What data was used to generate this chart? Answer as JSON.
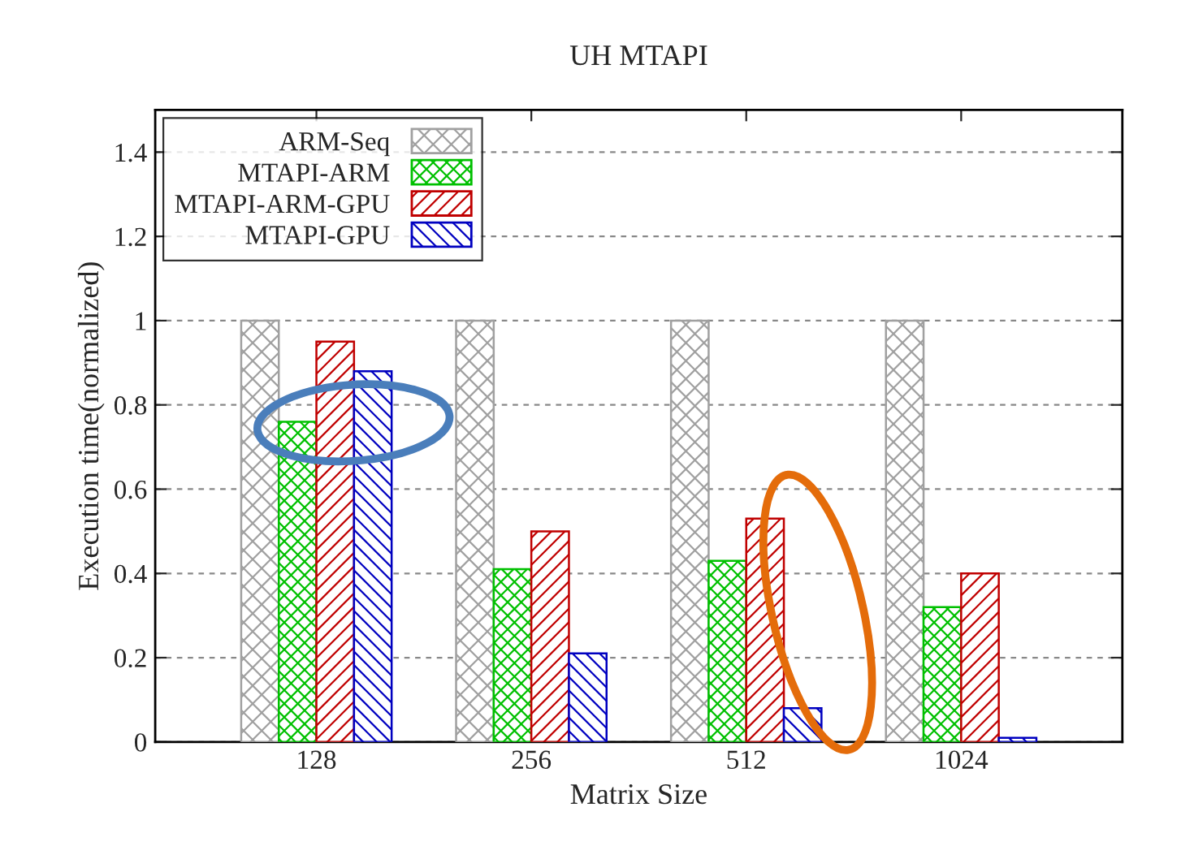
{
  "chart_data": {
    "type": "bar",
    "title": "UH MTAPI",
    "xlabel": "Matrix Size",
    "ylabel": "Execution time(normalized)",
    "categories": [
      "128",
      "256",
      "512",
      "1024"
    ],
    "series": [
      {
        "name": "ARM-Seq",
        "color": "#a0a0a0",
        "values": [
          1,
          1,
          1,
          1
        ]
      },
      {
        "name": "MTAPI-ARM",
        "color": "#00c000",
        "values": [
          0.76,
          0.41,
          0.43,
          0.32
        ]
      },
      {
        "name": "MTAPI-ARM-GPU",
        "color": "#c00000",
        "values": [
          0.95,
          0.5,
          0.53,
          0.4
        ]
      },
      {
        "name": "MTAPI-GPU",
        "color": "#0000c0",
        "values": [
          0.88,
          0.21,
          0.08,
          0.01
        ]
      }
    ],
    "ylim": [
      0,
      1.5
    ],
    "yticks": [
      0,
      0.2,
      0.4,
      0.6,
      0.8,
      1,
      1.2,
      1.4
    ],
    "grid": "y",
    "legend": "top left"
  }
}
